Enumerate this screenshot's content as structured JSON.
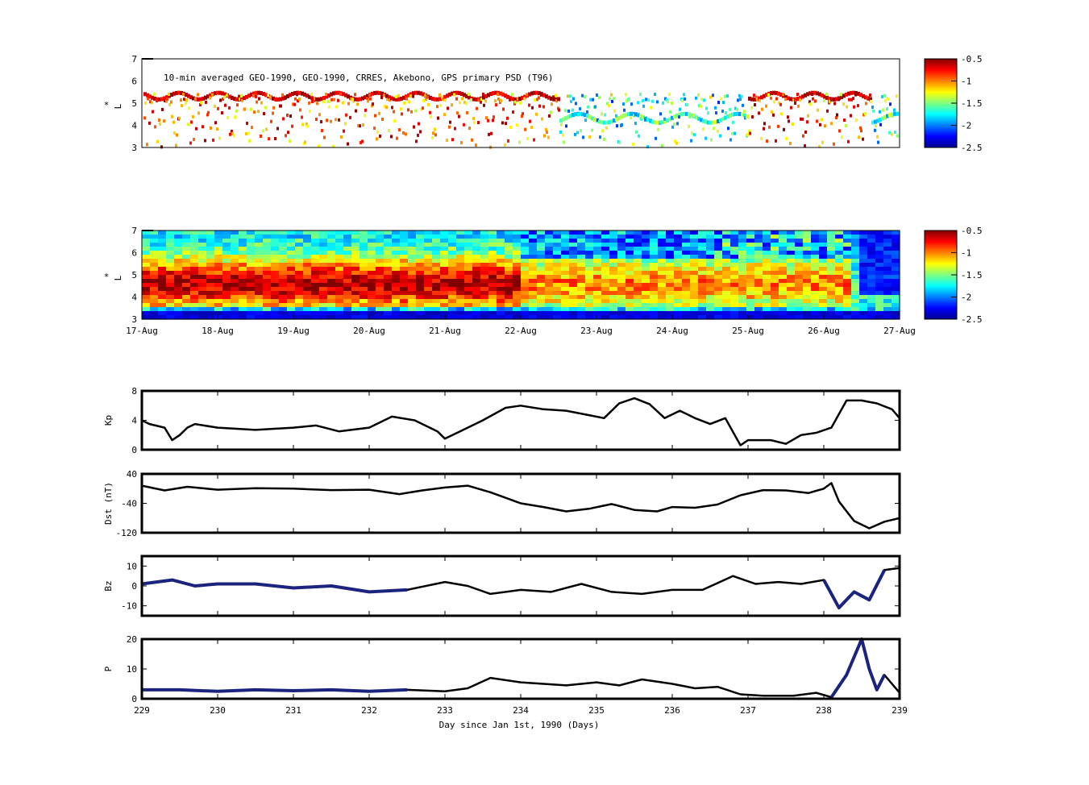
{
  "figure": {
    "panel1_title": "10-min averaged GEO-1990, GEO-1990, CRRES, Akebono, GPS  primary PSD (T96)",
    "lstar_label": "L",
    "lstar_star": "*",
    "colorbar_ticks": [
      "-0.5",
      "-1",
      "-1.5",
      "-2",
      "-2.5"
    ],
    "lstar_ticks": [
      "7",
      "6",
      "5",
      "4",
      "3"
    ],
    "date_ticks": [
      "17-Aug",
      "18-Aug",
      "19-Aug",
      "20-Aug",
      "21-Aug",
      "22-Aug",
      "23-Aug",
      "24-Aug",
      "25-Aug",
      "26-Aug",
      "27-Aug"
    ],
    "day_ticks": [
      "229",
      "230",
      "231",
      "232",
      "233",
      "234",
      "235",
      "236",
      "237",
      "238",
      "239"
    ],
    "xlabel": "Day since Jan 1st, 1990 (Days)",
    "colors": {
      "line": "#000000",
      "highlight": "#1a237e"
    }
  },
  "chart_data": [
    {
      "type": "scatter",
      "title": "10-min averaged GEO-1990, GEO-1990, CRRES, Akebono, GPS  primary PSD (T96)",
      "ylabel": "L*",
      "ylim": [
        3,
        7
      ],
      "xlim": [
        229,
        239
      ],
      "colorbar": {
        "range": [
          -2.5,
          -0.5
        ],
        "colormap": "jet"
      }
    },
    {
      "type": "heatmap",
      "ylabel": "L*",
      "ylim": [
        3,
        7
      ],
      "xlim": [
        229,
        239
      ],
      "x_tick_labels": [
        "17-Aug",
        "18-Aug",
        "19-Aug",
        "20-Aug",
        "21-Aug",
        "22-Aug",
        "23-Aug",
        "24-Aug",
        "25-Aug",
        "26-Aug",
        "27-Aug"
      ],
      "colorbar": {
        "range": [
          -2.5,
          -0.5
        ],
        "colormap": "jet"
      }
    },
    {
      "type": "line",
      "ylabel": "Kp",
      "ylim": [
        0,
        8
      ],
      "yticks": [
        "8",
        "4",
        "0"
      ],
      "x": [
        229,
        229.1,
        229.3,
        229.4,
        229.5,
        229.6,
        229.7,
        230,
        230.5,
        231,
        231.3,
        231.6,
        232,
        232.3,
        232.6,
        232.9,
        233,
        233.2,
        233.5,
        233.8,
        234,
        234.3,
        234.6,
        234.9,
        235.1,
        235.3,
        235.5,
        235.7,
        235.9,
        236.1,
        236.3,
        236.5,
        236.7,
        236.9,
        237,
        237.3,
        237.5,
        237.7,
        237.9,
        238.1,
        238.3,
        238.5,
        238.7,
        238.9,
        239
      ],
      "y": [
        4,
        3.5,
        3,
        1.3,
        2,
        3,
        3.5,
        3,
        2.7,
        3,
        3.3,
        2.5,
        3,
        4.5,
        4,
        2.5,
        1.5,
        2.5,
        4,
        5.7,
        6,
        5.5,
        5.3,
        4.7,
        4.3,
        6.3,
        7,
        6.2,
        4.3,
        5.3,
        4.3,
        3.5,
        4.3,
        0.6,
        1.3,
        1.3,
        0.8,
        2,
        2.3,
        3,
        6.7,
        6.7,
        6.3,
        5.5,
        4.3
      ]
    },
    {
      "type": "line",
      "ylabel": "Dst (nT)",
      "ylim": [
        -120,
        40
      ],
      "yticks": [
        "40",
        "-40",
        "-120"
      ],
      "x": [
        229,
        229.3,
        229.6,
        230,
        230.5,
        231,
        231.5,
        232,
        232.4,
        232.7,
        233,
        233.3,
        233.6,
        234,
        234.3,
        234.6,
        234.9,
        235.2,
        235.5,
        235.8,
        236,
        236.3,
        236.6,
        236.9,
        237.2,
        237.5,
        237.8,
        238,
        238.1,
        238.2,
        238.4,
        238.6,
        238.8,
        239
      ],
      "y": [
        8,
        -5,
        5,
        -3,
        1,
        0,
        -4,
        -3,
        -15,
        -5,
        3,
        8,
        -10,
        -40,
        -50,
        -62,
        -55,
        -42,
        -58,
        -62,
        -50,
        -52,
        -43,
        -18,
        -4,
        -5,
        -12,
        0,
        15,
        -35,
        -88,
        -108,
        -90,
        -80
      ]
    },
    {
      "type": "line",
      "ylabel": "Bz",
      "ylim": [
        -15,
        15
      ],
      "yticks": [
        "10",
        "0",
        "-10"
      ],
      "x": [
        229,
        229.4,
        229.7,
        230,
        230.5,
        231,
        231.5,
        232,
        232.5,
        233,
        233.3,
        233.6,
        234,
        234.4,
        234.8,
        235.2,
        235.6,
        236,
        236.4,
        236.8,
        237.1,
        237.4,
        237.7,
        238,
        238.2,
        238.4,
        238.6,
        238.8,
        239
      ],
      "y": [
        1,
        3,
        0,
        1,
        1,
        -1,
        0,
        -3,
        -2,
        2,
        0,
        -4,
        -2,
        -3,
        1,
        -3,
        -4,
        -2,
        -2,
        5,
        1,
        2,
        1,
        3,
        -11,
        -3,
        -7,
        8,
        9
      ]
    },
    {
      "type": "line",
      "ylabel": "P",
      "ylim": [
        0,
        20
      ],
      "yticks": [
        "20",
        "10",
        "0"
      ],
      "x": [
        229,
        229.5,
        230,
        230.5,
        231,
        231.5,
        232,
        232.5,
        233,
        233.3,
        233.6,
        234,
        234.3,
        234.6,
        235,
        235.3,
        235.6,
        236,
        236.3,
        236.6,
        236.9,
        237.2,
        237.6,
        237.9,
        238.1,
        238.3,
        238.5,
        238.6,
        238.7,
        238.8,
        239
      ],
      "y": [
        3,
        3,
        2.5,
        3,
        2.7,
        3,
        2.5,
        3,
        2.5,
        3.5,
        7,
        5.5,
        5,
        4.5,
        5.5,
        4.5,
        6.5,
        5,
        3.5,
        4,
        1.5,
        1,
        1,
        2,
        0.5,
        8,
        20,
        10,
        3,
        8,
        2
      ]
    }
  ]
}
